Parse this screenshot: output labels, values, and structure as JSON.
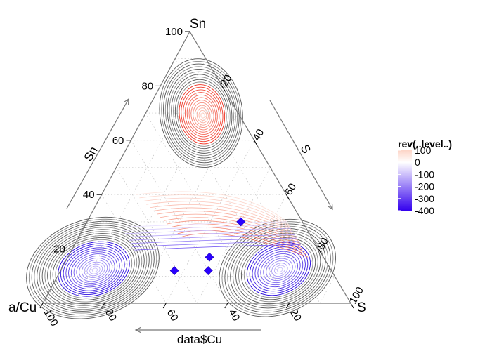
{
  "chart_data": {
    "type": "ternary-contour",
    "vertices": {
      "top": "Sn",
      "left": "a/Cu",
      "right": "S"
    },
    "axis_titles": {
      "left": "Sn",
      "right": "S",
      "bottom": "data$Cu"
    },
    "ticks": {
      "left": [
        "20",
        "40",
        "60",
        "80",
        "100"
      ],
      "right": [
        "20",
        "40",
        "60",
        "80",
        "100"
      ],
      "bottom": [
        "100",
        "80",
        "60",
        "40",
        "20"
      ]
    },
    "grid_lines": "dashed grey, every 10",
    "contour_clusters": [
      {
        "name": "top",
        "center": [
          0.12,
          0.7,
          0.18
        ],
        "contours": 22,
        "range": [
          -100,
          100
        ]
      },
      {
        "name": "bottom-left",
        "center": [
          0.77,
          0.13,
          0.1
        ],
        "contours": 26,
        "range": [
          -400,
          0
        ]
      },
      {
        "name": "bottom-right",
        "center": [
          0.17,
          0.13,
          0.7
        ],
        "contours": 22,
        "range": [
          -400,
          0
        ]
      }
    ],
    "points": [
      {
        "cu": 0.4,
        "sn": 0.12,
        "s": 0.48
      },
      {
        "cu": 0.37,
        "sn": 0.17,
        "s": 0.46
      },
      {
        "cu": 0.2,
        "sn": 0.3,
        "s": 0.5
      },
      {
        "cu": 0.51,
        "sn": 0.12,
        "s": 0.37
      }
    ],
    "legend": {
      "title": "rev(..level..)",
      "labels": [
        "100",
        "0",
        "-100",
        "-200",
        "-300",
        "-400"
      ],
      "colors": {
        "high": "#fdd5c7",
        "mid": "#ffffff",
        "low": "#3300ee"
      },
      "range": [
        -400,
        100
      ],
      "placement": "right"
    },
    "colors": {
      "positive": "#f03020",
      "negative": "#2200dd",
      "core": "#666666",
      "point": "#2a00ff"
    }
  }
}
